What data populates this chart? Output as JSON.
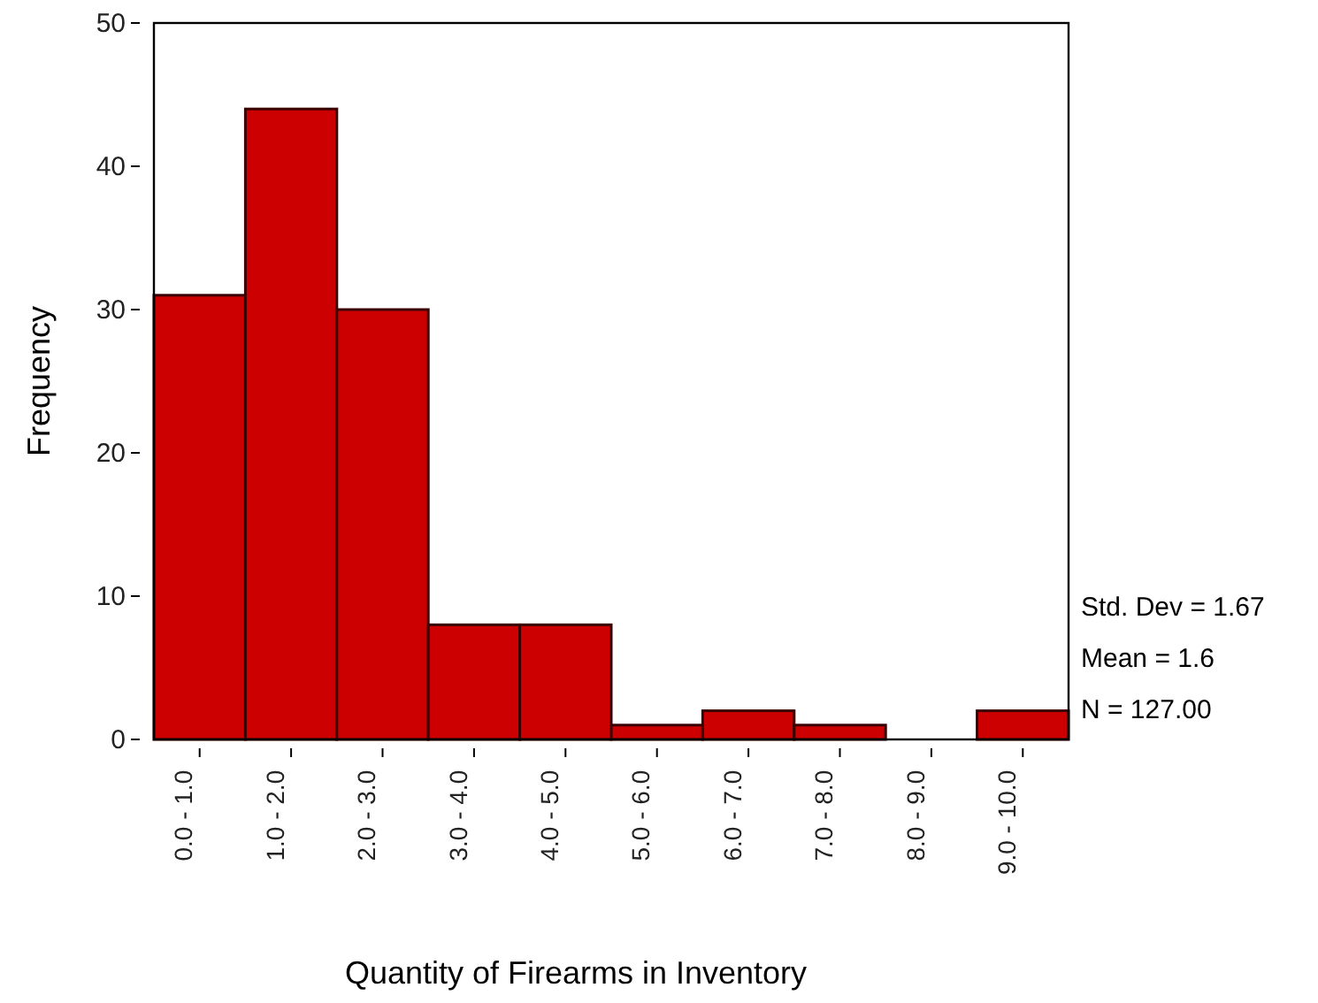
{
  "chart_data": {
    "type": "bar",
    "xlabel": "Quantity of Firearms in Inventory",
    "ylabel": "Frequency",
    "categories": [
      "0.0 - 1.0",
      "1.0 - 2.0",
      "2.0 - 3.0",
      "3.0 - 4.0",
      "4.0 - 5.0",
      "5.0 - 6.0",
      "6.0 - 7.0",
      "7.0 - 8.0",
      "8.0 - 9.0",
      "9.0 - 10.0"
    ],
    "values": [
      31,
      44,
      30,
      8,
      8,
      1,
      2,
      1,
      0,
      2
    ],
    "color": "#cc0000",
    "ylim": [
      0,
      50
    ],
    "yticks": [
      0,
      10,
      20,
      30,
      40,
      50
    ],
    "grid": false,
    "annotations": [
      "Std. Dev = 1.67",
      "Mean = 1.6",
      "N = 127.00"
    ]
  }
}
